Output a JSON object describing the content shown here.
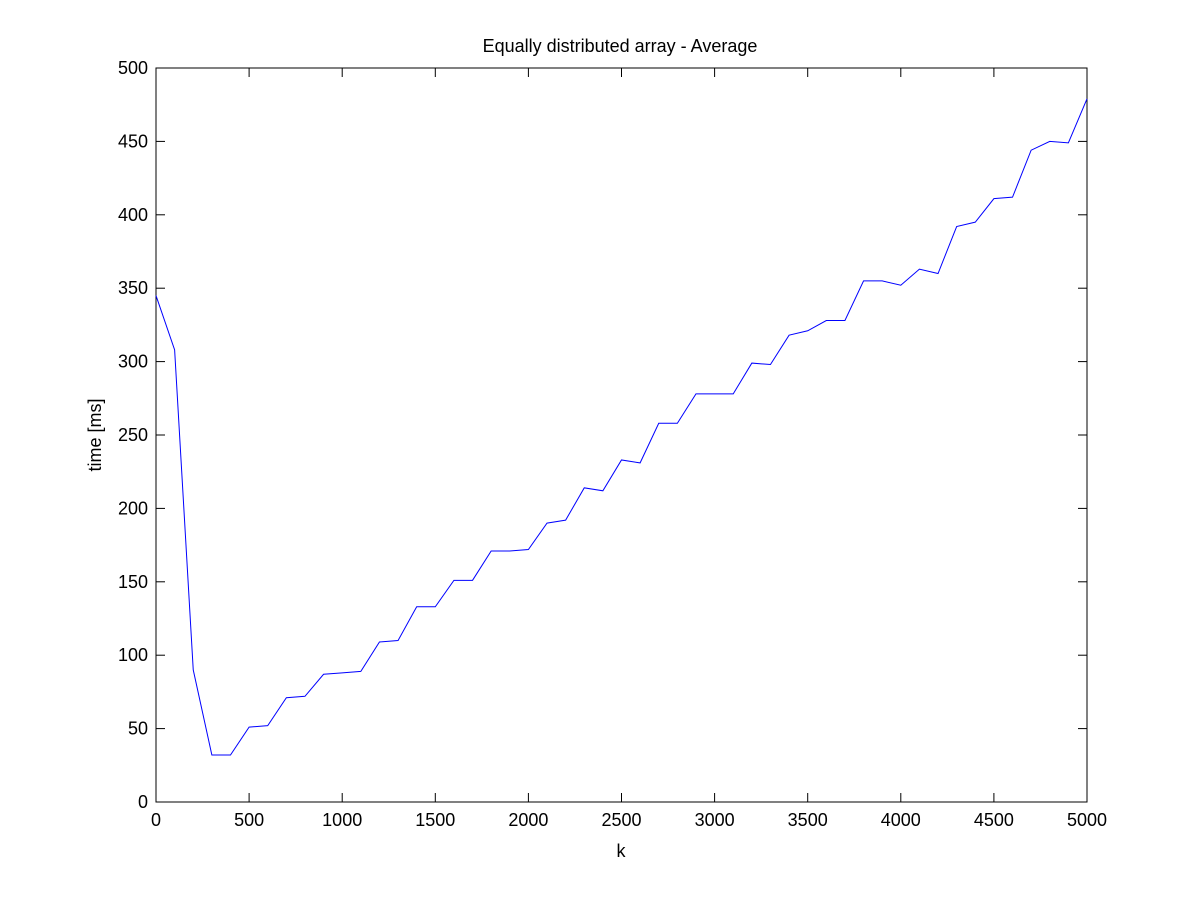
{
  "chart_data": {
    "type": "line",
    "title": "Equally distributed array - Average",
    "xlabel": "k",
    "ylabel": "time [ms]",
    "xlim": [
      0,
      5000
    ],
    "ylim": [
      0,
      500
    ],
    "xticks": [
      0,
      500,
      1000,
      1500,
      2000,
      2500,
      3000,
      3500,
      4000,
      4500,
      5000
    ],
    "yticks": [
      0,
      50,
      100,
      150,
      200,
      250,
      300,
      350,
      400,
      450,
      500
    ],
    "grid": false,
    "legend": "none",
    "series": [
      {
        "color": "#0000ff",
        "x": [
          0,
          100,
          200,
          300,
          400,
          500,
          600,
          700,
          800,
          900,
          1000,
          1100,
          1200,
          1300,
          1400,
          1500,
          1600,
          1700,
          1800,
          1900,
          2000,
          2100,
          2200,
          2300,
          2400,
          2500,
          2600,
          2700,
          2800,
          2900,
          3000,
          3100,
          3200,
          3300,
          3400,
          3500,
          3600,
          3700,
          3800,
          3900,
          4000,
          4100,
          4200,
          4300,
          4400,
          4500,
          4600,
          4700,
          4800,
          4900,
          5000
        ],
        "y": [
          345,
          308,
          90,
          32,
          32,
          51,
          52,
          71,
          72,
          87,
          88,
          89,
          109,
          110,
          133,
          133,
          151,
          151,
          171,
          171,
          172,
          190,
          192,
          214,
          212,
          233,
          231,
          258,
          258,
          278,
          278,
          278,
          299,
          298,
          318,
          321,
          328,
          328,
          355,
          355,
          352,
          363,
          360,
          392,
          395,
          411,
          412,
          444,
          450,
          449,
          479
        ]
      }
    ]
  }
}
